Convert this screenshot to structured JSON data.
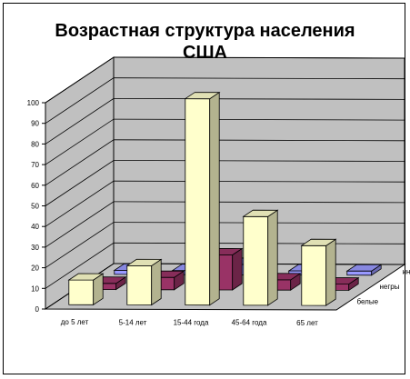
{
  "chart_data": {
    "type": "bar",
    "title_lines": [
      "Возрастная структура населения",
      "США"
    ],
    "categories": [
      "до 5 лет",
      "5-14 лет",
      "15-44 года",
      "45-64 года",
      "65 лет"
    ],
    "series": [
      {
        "name": "белые",
        "values": [
          12,
          19,
          100,
          43,
          29
        ],
        "color": "#ffffcc"
      },
      {
        "name": "негры",
        "values": [
          3,
          6,
          17,
          5,
          3
        ],
        "color": "#993366"
      },
      {
        "name": "индейцы",
        "values": [
          2,
          2,
          5,
          2,
          2
        ],
        "color": "#9999ff"
      }
    ],
    "ylim": [
      0,
      100
    ],
    "yticks": [
      0,
      10,
      20,
      30,
      40,
      50,
      60,
      70,
      80,
      90,
      100
    ],
    "grid": true,
    "view": "3d-column"
  }
}
